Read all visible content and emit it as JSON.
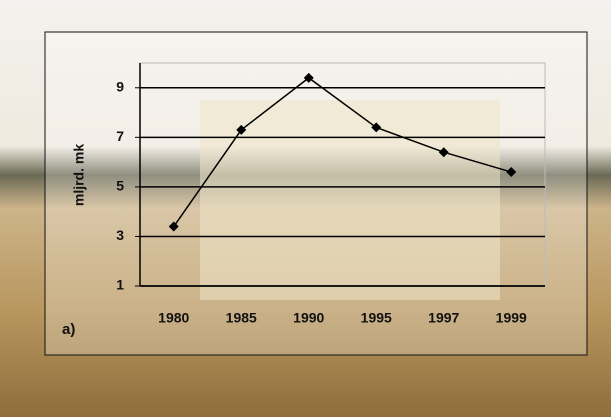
{
  "chart_data": {
    "type": "line",
    "y_label": "mljrd. mk",
    "annotation": "a)",
    "categories": [
      "1980",
      "1985",
      "1990",
      "1995",
      "1997",
      "1999"
    ],
    "values": [
      3.4,
      7.3,
      9.4,
      7.4,
      6.4,
      5.6
    ],
    "color": "#000000",
    "ylim": [
      1,
      10
    ],
    "yticks": [
      1,
      3,
      5,
      7,
      9
    ],
    "grid": true
  }
}
